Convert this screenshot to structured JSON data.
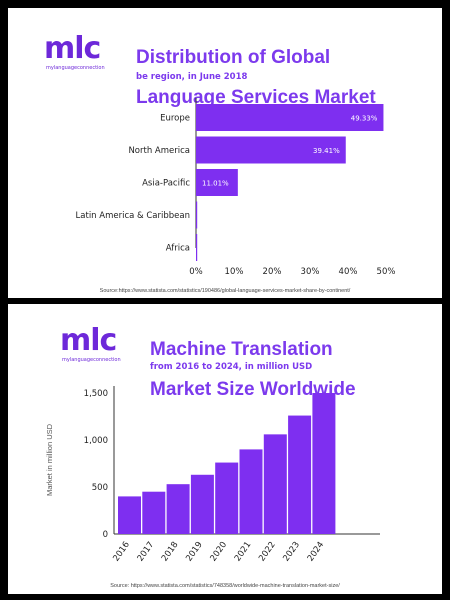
{
  "panel1": {
    "logo": {
      "mark": "mlc",
      "tagline": "mylanguageconnection"
    },
    "title_line1": "Distribution of Global",
    "title_line2": "Language Services Market",
    "subtitle": "be region, in June 2018",
    "source": "Source:https://www.statista.com/statistics/190486/global-language-services-market-share-by-continent/"
  },
  "panel2": {
    "logo": {
      "mark": "mlc",
      "tagline": "mylanguageconnection"
    },
    "title_line1": "Machine Translation",
    "title_line2": "Market Size Worldwide",
    "subtitle": "from 2016 to 2024, in million USD",
    "source": "Source: https://www.statista.com/statistics/748358/worldwide-machine-translation-market-size/"
  },
  "colors": {
    "accent": "#7c3aed",
    "bar": "#7e2ff0",
    "background": "#000000"
  },
  "chart_data": [
    {
      "type": "bar",
      "orientation": "horizontal",
      "title": "Distribution of Global Language Services Market",
      "subtitle": "be region, in June 2018",
      "categories": [
        "Europe",
        "North America",
        "Asia-Pacific",
        "Latin America & Caribbean",
        "Africa"
      ],
      "values": [
        49.33,
        39.41,
        11.01,
        0.2,
        0.1
      ],
      "data_labels": [
        "49.33%",
        "39.41%",
        "11.01%",
        "",
        ""
      ],
      "xlim": [
        0,
        50
      ],
      "xticks": [
        "0%",
        "10%",
        "20%",
        "30%",
        "40%",
        "50%"
      ],
      "grid": false
    },
    {
      "type": "bar",
      "orientation": "vertical",
      "title": "Machine Translation Market Size Worldwide",
      "subtitle": "from 2016 to 2024, in million USD",
      "categories": [
        "2016",
        "2017",
        "2018",
        "2019",
        "2020",
        "2021",
        "2022",
        "2023",
        "2024"
      ],
      "values": [
        400,
        450,
        530,
        630,
        760,
        900,
        1060,
        1260,
        1500
      ],
      "ylabel": "Market in million USD",
      "ylim": [
        0,
        1500
      ],
      "yticks": [
        "0",
        "500",
        "1,000",
        "1,500"
      ],
      "grid": false
    }
  ]
}
